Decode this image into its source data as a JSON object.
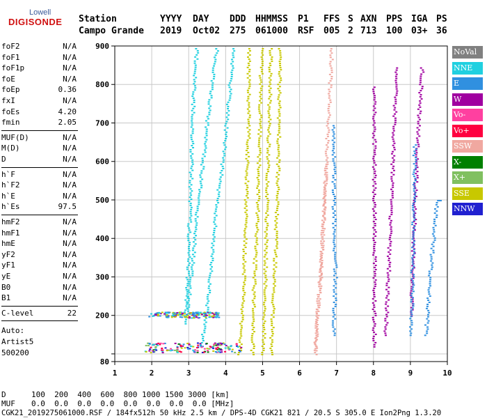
{
  "logo": {
    "top": "Lowell",
    "bottom": "DIGISONDE"
  },
  "header": {
    "labels": [
      "Station",
      "YYYY",
      "DAY",
      "DDD",
      "HHMMSS",
      "P1",
      "FFS",
      "S",
      "AXN",
      "PPS",
      "IGA",
      "PS"
    ],
    "values": [
      "Campo Grande",
      "2019",
      "Oct02",
      "275",
      "061000",
      "RSF",
      "005",
      "2",
      "713",
      "100",
      "03+",
      "36"
    ]
  },
  "params": [
    {
      "group": [
        {
          "k": "foF2",
          "v": "N/A"
        },
        {
          "k": "foF1",
          "v": "N/A"
        },
        {
          "k": "foF1p",
          "v": "N/A"
        },
        {
          "k": "foE",
          "v": "N/A"
        },
        {
          "k": "foEp",
          "v": "0.36"
        },
        {
          "k": "fxI",
          "v": "N/A"
        },
        {
          "k": "foEs",
          "v": "4.20"
        },
        {
          "k": "fmin",
          "v": "2.05"
        }
      ]
    },
    {
      "group": [
        {
          "k": "MUF(D)",
          "v": "N/A"
        },
        {
          "k": "M(D)",
          "v": "N/A"
        },
        {
          "k": "D",
          "v": "N/A"
        }
      ]
    },
    {
      "group": [
        {
          "k": "h`F",
          "v": "N/A"
        },
        {
          "k": "h`F2",
          "v": "N/A"
        },
        {
          "k": "h`E",
          "v": "N/A"
        },
        {
          "k": "h`Es",
          "v": "97.5"
        }
      ]
    },
    {
      "group": [
        {
          "k": "hmF2",
          "v": "N/A"
        },
        {
          "k": "hmF1",
          "v": "N/A"
        },
        {
          "k": "hmE",
          "v": "N/A"
        },
        {
          "k": "yF2",
          "v": "N/A"
        },
        {
          "k": "yF1",
          "v": "N/A"
        },
        {
          "k": "yE",
          "v": "N/A"
        },
        {
          "k": "B0",
          "v": "N/A"
        },
        {
          "k": "B1",
          "v": "N/A"
        }
      ]
    },
    {
      "group": [
        {
          "k": "C-level",
          "v": "22"
        }
      ]
    }
  ],
  "auto": [
    "Auto:",
    "Artist5",
    "500200"
  ],
  "legend": [
    {
      "label": "NoVal",
      "color": "#808080"
    },
    {
      "label": "NNE",
      "color": "#20d0e0"
    },
    {
      "label": "E",
      "color": "#3090e0"
    },
    {
      "label": "W",
      "color": "#a000a0"
    },
    {
      "label": "Vo-",
      "color": "#ff40a0"
    },
    {
      "label": "Vo+",
      "color": "#ff0040"
    },
    {
      "label": "SSW",
      "color": "#f0a8a0"
    },
    {
      "label": "X-",
      "color": "#008000"
    },
    {
      "label": "X+",
      "color": "#80c060"
    },
    {
      "label": "SSE",
      "color": "#c8c800"
    },
    {
      "label": "NNW",
      "color": "#2020d0"
    }
  ],
  "footer": {
    "d_label": "D",
    "d_values": "100  200  400  600  800 1000 1500 3000 [km]",
    "muf_label": "MUF",
    "muf_values": "0.0  0.0  0.0  0.0  0.0  0.0  0.0  0.0 [MHz]",
    "info": "CGK21_2019275061000.RSF / 184fx512h 50 kHz 2.5 km / DPS-4D CGK21 821 / 20.5 S 305.0 E Ion2Png 1.3.20"
  },
  "chart_data": {
    "type": "scatter",
    "xlim": [
      1,
      10
    ],
    "ylim": [
      80,
      900
    ],
    "x_ticks": [
      1,
      2,
      3,
      4,
      5,
      6,
      7,
      8,
      9,
      10
    ],
    "y_ticks": [
      80,
      100,
      200,
      300,
      400,
      500,
      600,
      700,
      800,
      900
    ],
    "y_tick_labels": [
      "80",
      "",
      "200",
      "300",
      "400",
      "500",
      "600",
      "700",
      "800",
      "900"
    ],
    "grid": true,
    "traces": [
      {
        "color": "#20d0e0",
        "points": [
          [
            3.3,
            120
          ],
          [
            3.45,
            200
          ],
          [
            3.55,
            300
          ],
          [
            3.65,
            400
          ],
          [
            3.75,
            500
          ],
          [
            3.9,
            600
          ],
          [
            4.0,
            700
          ],
          [
            4.1,
            800
          ],
          [
            4.2,
            900
          ]
        ]
      },
      {
        "color": "#20d0e0",
        "points": [
          [
            2.9,
            180
          ],
          [
            3.05,
            300
          ],
          [
            3.15,
            420
          ],
          [
            3.3,
            550
          ],
          [
            3.45,
            680
          ],
          [
            3.6,
            800
          ],
          [
            3.75,
            900
          ]
        ]
      },
      {
        "color": "#20d0e0",
        "points": [
          [
            2.9,
            210
          ],
          [
            2.95,
            300
          ],
          [
            3.0,
            450
          ],
          [
            3.05,
            600
          ],
          [
            3.1,
            750
          ],
          [
            3.2,
            900
          ]
        ]
      },
      {
        "color": "#c8c800",
        "points": [
          [
            4.35,
            100
          ],
          [
            4.45,
            250
          ],
          [
            4.5,
            400
          ],
          [
            4.55,
            550
          ],
          [
            4.6,
            700
          ],
          [
            4.6,
            900
          ]
        ]
      },
      {
        "color": "#c8c800",
        "points": [
          [
            4.7,
            100
          ],
          [
            4.75,
            300
          ],
          [
            4.85,
            500
          ],
          [
            4.9,
            700
          ],
          [
            4.95,
            900
          ]
        ]
      },
      {
        "color": "#c8c800",
        "points": [
          [
            5.0,
            100
          ],
          [
            5.05,
            300
          ],
          [
            5.1,
            500
          ],
          [
            5.15,
            700
          ],
          [
            5.2,
            900
          ]
        ]
      },
      {
        "color": "#c8c800",
        "points": [
          [
            5.2,
            100
          ],
          [
            5.3,
            300
          ],
          [
            5.4,
            600
          ],
          [
            5.45,
            900
          ]
        ]
      },
      {
        "color": "#f0a8a0",
        "points": [
          [
            6.4,
            100
          ],
          [
            6.45,
            200
          ],
          [
            6.55,
            300
          ],
          [
            6.6,
            400
          ],
          [
            6.65,
            500
          ],
          [
            6.7,
            600
          ],
          [
            6.75,
            700
          ],
          [
            6.8,
            800
          ],
          [
            6.85,
            900
          ]
        ]
      },
      {
        "color": "#f0a8a0",
        "points": [
          [
            6.4,
            110
          ],
          [
            6.5,
            250
          ],
          [
            6.6,
            400
          ],
          [
            6.7,
            600
          ]
        ]
      },
      {
        "color": "#3090e0",
        "points": [
          [
            6.9,
            150
          ],
          [
            6.95,
            300
          ],
          [
            6.9,
            500
          ],
          [
            6.9,
            700
          ]
        ]
      },
      {
        "color": "#a000a0",
        "points": [
          [
            8.3,
            150
          ],
          [
            8.4,
            350
          ],
          [
            8.5,
            600
          ],
          [
            8.6,
            850
          ]
        ]
      },
      {
        "color": "#a000a0",
        "points": [
          [
            9.0,
            200
          ],
          [
            9.1,
            500
          ],
          [
            9.2,
            700
          ],
          [
            9.3,
            850
          ]
        ]
      },
      {
        "color": "#3090e0",
        "points": [
          [
            9.4,
            150
          ],
          [
            9.5,
            300
          ],
          [
            9.7,
            500
          ],
          [
            9.8,
            500
          ]
        ]
      },
      {
        "color": "#a000a0",
        "points": [
          [
            8.0,
            120
          ],
          [
            8.0,
            500
          ],
          [
            8.0,
            800
          ]
        ]
      },
      {
        "color": "#3090e0",
        "points": [
          [
            9.0,
            150
          ],
          [
            9.05,
            400
          ],
          [
            9.1,
            650
          ]
        ]
      }
    ],
    "clusters": [
      {
        "x": [
          1.8,
          4.4
        ],
        "y": [
          105,
          130
        ],
        "colors": [
          "#a000a0",
          "#3090e0",
          "#c8c800",
          "#20d0e0",
          "#ff40a0",
          "#2020d0",
          "#008000",
          "#80c060",
          "#ff0040"
        ]
      },
      {
        "x": [
          1.9,
          3.8
        ],
        "y": [
          195,
          210
        ],
        "colors": [
          "#c8c800",
          "#a000a0",
          "#3090e0",
          "#20d0e0"
        ]
      }
    ]
  }
}
